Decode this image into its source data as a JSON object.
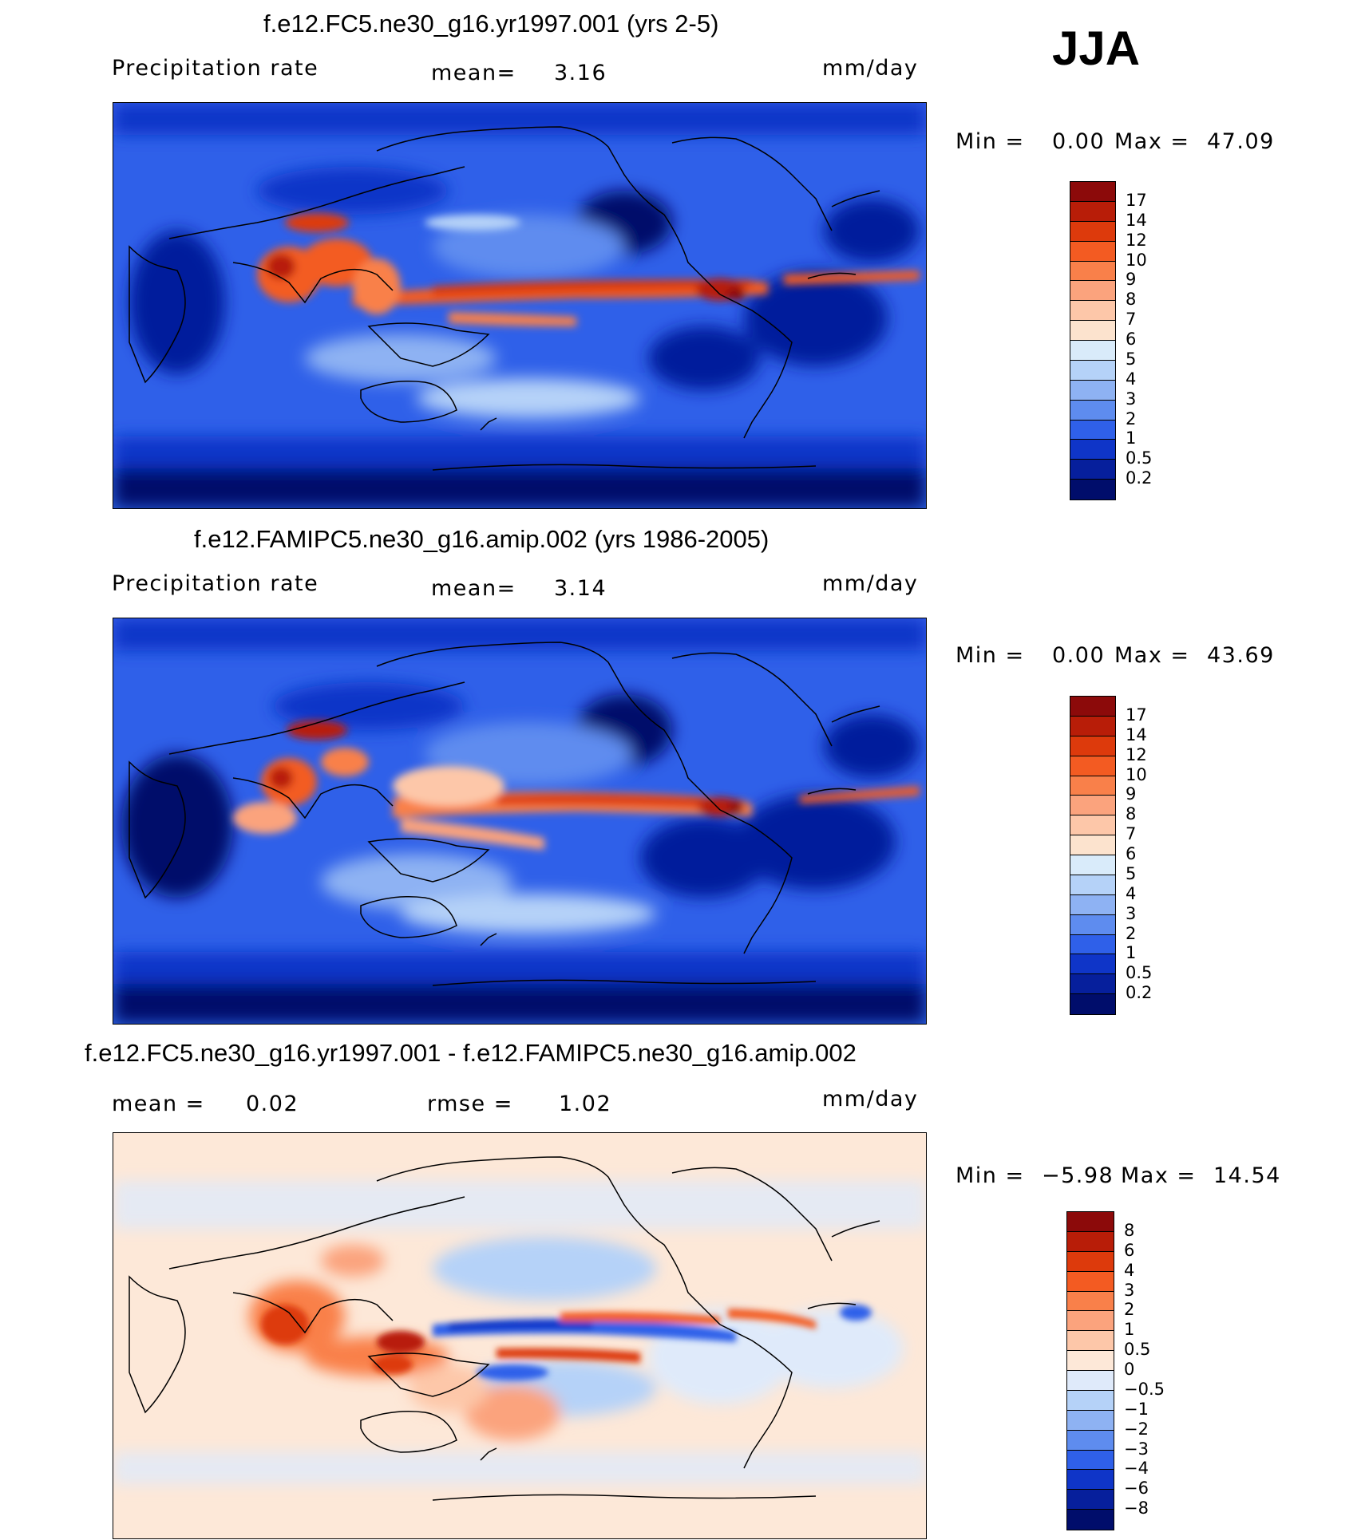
{
  "season": "JJA",
  "panels": [
    {
      "title": "f.e12.FC5.ne30_g16.yr1997.001 (yrs 2-5)",
      "left_label": "Precipitation  rate",
      "mid_label": "mean=",
      "mid_value": "3.16",
      "units": "mm/day",
      "min_label": "Min  =",
      "min_value": "0.00",
      "max_label": "Max  =",
      "max_value": "47.09",
      "colorbar_labels": [
        "17",
        "14",
        "12",
        "10",
        "9",
        "8",
        "7",
        "6",
        "5",
        "4",
        "3",
        "2",
        "1",
        "0.5",
        "0.2"
      ],
      "colorbar_colors": [
        "#8c0a0a",
        "#b81d08",
        "#dd3a0c",
        "#f35b22",
        "#f9804a",
        "#fba37d",
        "#fdc7a9",
        "#fce3ce",
        "#d9ebfa",
        "#b5d2f8",
        "#8eb2f3",
        "#5e8cef",
        "#2f60e9",
        "#0f35c8",
        "#061f9c",
        "#000d6b"
      ]
    },
    {
      "title": "f.e12.FAMIPC5.ne30_g16.amip.002 (yrs 1986-2005)",
      "left_label": "Precipitation  rate",
      "mid_label": "mean=",
      "mid_value": "3.14",
      "units": "mm/day",
      "min_label": "Min  =",
      "min_value": "0.00",
      "max_label": "Max  =",
      "max_value": "43.69",
      "colorbar_labels": [
        "17",
        "14",
        "12",
        "10",
        "9",
        "8",
        "7",
        "6",
        "5",
        "4",
        "3",
        "2",
        "1",
        "0.5",
        "0.2"
      ],
      "colorbar_colors": [
        "#8c0a0a",
        "#b81d08",
        "#dd3a0c",
        "#f35b22",
        "#f9804a",
        "#fba37d",
        "#fdc7a9",
        "#fce3ce",
        "#d9ebfa",
        "#b5d2f8",
        "#8eb2f3",
        "#5e8cef",
        "#2f60e9",
        "#0f35c8",
        "#061f9c",
        "#000d6b"
      ]
    },
    {
      "title": "f.e12.FC5.ne30_g16.yr1997.001 - f.e12.FAMIPC5.ne30_g16.amip.002",
      "left_label": "mean  =",
      "left_value": "0.02",
      "mid_label": "rmse  =",
      "mid_value": "1.02",
      "units": "mm/day",
      "min_label": "Min  =",
      "min_value": "−5.98",
      "max_label": "Max  =",
      "max_value": "14.54",
      "colorbar_labels": [
        "8",
        "6",
        "4",
        "3",
        "2",
        "1",
        "0.5",
        "0",
        "−0.5",
        "−1",
        "−2",
        "−3",
        "−4",
        "−6",
        "−8"
      ],
      "colorbar_colors": [
        "#8c0a0a",
        "#b81d08",
        "#dd3a0c",
        "#f35b22",
        "#f9804a",
        "#fba37d",
        "#fdc7a9",
        "#fde8d8",
        "#dfeafa",
        "#b5d2f8",
        "#8eb2f3",
        "#5e8cef",
        "#2f60e9",
        "#0f35c8",
        "#061f9c",
        "#000d6b"
      ]
    }
  ]
}
